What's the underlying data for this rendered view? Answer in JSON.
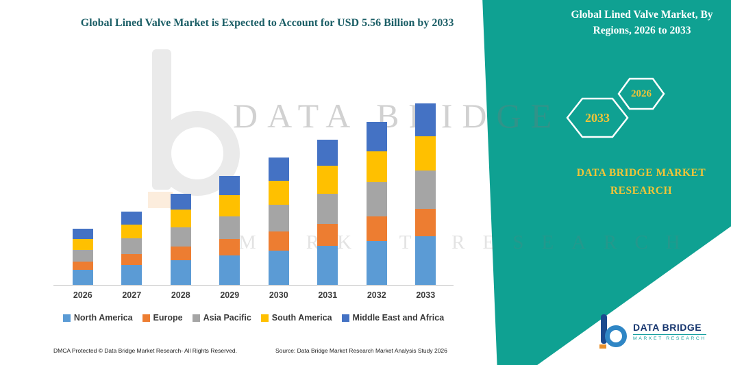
{
  "header": {
    "title": "Global Lined Valve Market is Expected to Account for USD 5.56 Billion by 2033"
  },
  "chart_data": {
    "type": "bar",
    "stacked": true,
    "title": "Global Lined Valve Market is Expected to Account for USD 5.56 Billion by 2033",
    "unit": "USD Billion",
    "categories": [
      "2026",
      "2027",
      "2028",
      "2029",
      "2030",
      "2031",
      "2032",
      "2033"
    ],
    "series": [
      {
        "name": "North America",
        "color": "#5B9BD5",
        "values": [
          0.46,
          0.61,
          0.76,
          0.9,
          1.05,
          1.2,
          1.35,
          1.5
        ]
      },
      {
        "name": "Europe",
        "color": "#ED7D31",
        "values": [
          0.26,
          0.34,
          0.42,
          0.5,
          0.59,
          0.67,
          0.75,
          0.83
        ]
      },
      {
        "name": "Asia Pacific",
        "color": "#A5A5A5",
        "values": [
          0.36,
          0.47,
          0.59,
          0.7,
          0.82,
          0.93,
          1.05,
          1.17
        ]
      },
      {
        "name": "South America",
        "color": "#FFC000",
        "values": [
          0.32,
          0.43,
          0.53,
          0.64,
          0.74,
          0.85,
          0.95,
          1.06
        ]
      },
      {
        "name": "Middle East and Africa",
        "color": "#4472C4",
        "values": [
          0.31,
          0.4,
          0.5,
          0.6,
          0.7,
          0.8,
          0.9,
          1.0
        ]
      }
    ],
    "stated_value": "USD 5.56 Billion by 2033",
    "ylim": [
      0,
      5.56
    ],
    "gridlines": false,
    "legend_position": "bottom"
  },
  "side_panel": {
    "title": "Global Lined Valve Market, By Regions, 2026 to 2033",
    "hexagon_left": "2033",
    "hexagon_right": "2026",
    "brand_text": "DATA BRIDGE MARKET RESEARCH",
    "panel_color": "#0FA192",
    "badge_text_color": "#F2C437"
  },
  "watermark": {
    "line1": "DATA BRIDGE",
    "line2": "MARKET RESEARCH"
  },
  "footer": {
    "dmca": "DMCA Protected © Data Bridge Market Research-  All Rights Reserved.",
    "source": "Source: Data Bridge Market Research  Market Analysis Study 2026"
  },
  "logo": {
    "name": "DATA BRIDGE",
    "subtitle": "MARKET RESEARCH"
  }
}
